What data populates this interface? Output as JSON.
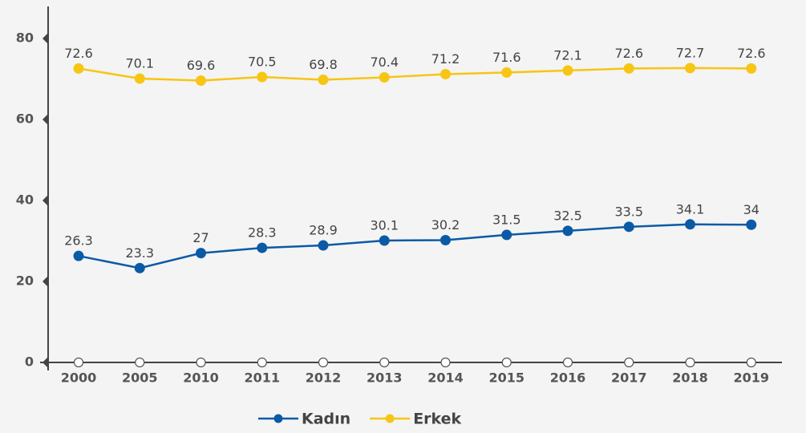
{
  "chart_data": {
    "type": "line",
    "categories": [
      "2000",
      "2005",
      "2010",
      "2011",
      "2012",
      "2013",
      "2014",
      "2015",
      "2016",
      "2017",
      "2018",
      "2019"
    ],
    "series": [
      {
        "name": "Kadın",
        "color": "#0b5aa6",
        "values": [
          26.3,
          23.3,
          27,
          28.3,
          28.9,
          30.1,
          30.2,
          31.5,
          32.5,
          33.5,
          34.1,
          34
        ]
      },
      {
        "name": "Erkek",
        "color": "#f7c514",
        "values": [
          72.6,
          70.1,
          69.6,
          70.5,
          69.8,
          70.4,
          71.2,
          71.6,
          72.1,
          72.6,
          72.7,
          72.6
        ]
      }
    ],
    "ylim": [
      0,
      80
    ],
    "yticks": [
      0,
      20,
      40,
      60,
      80
    ],
    "legend": "bottom"
  }
}
